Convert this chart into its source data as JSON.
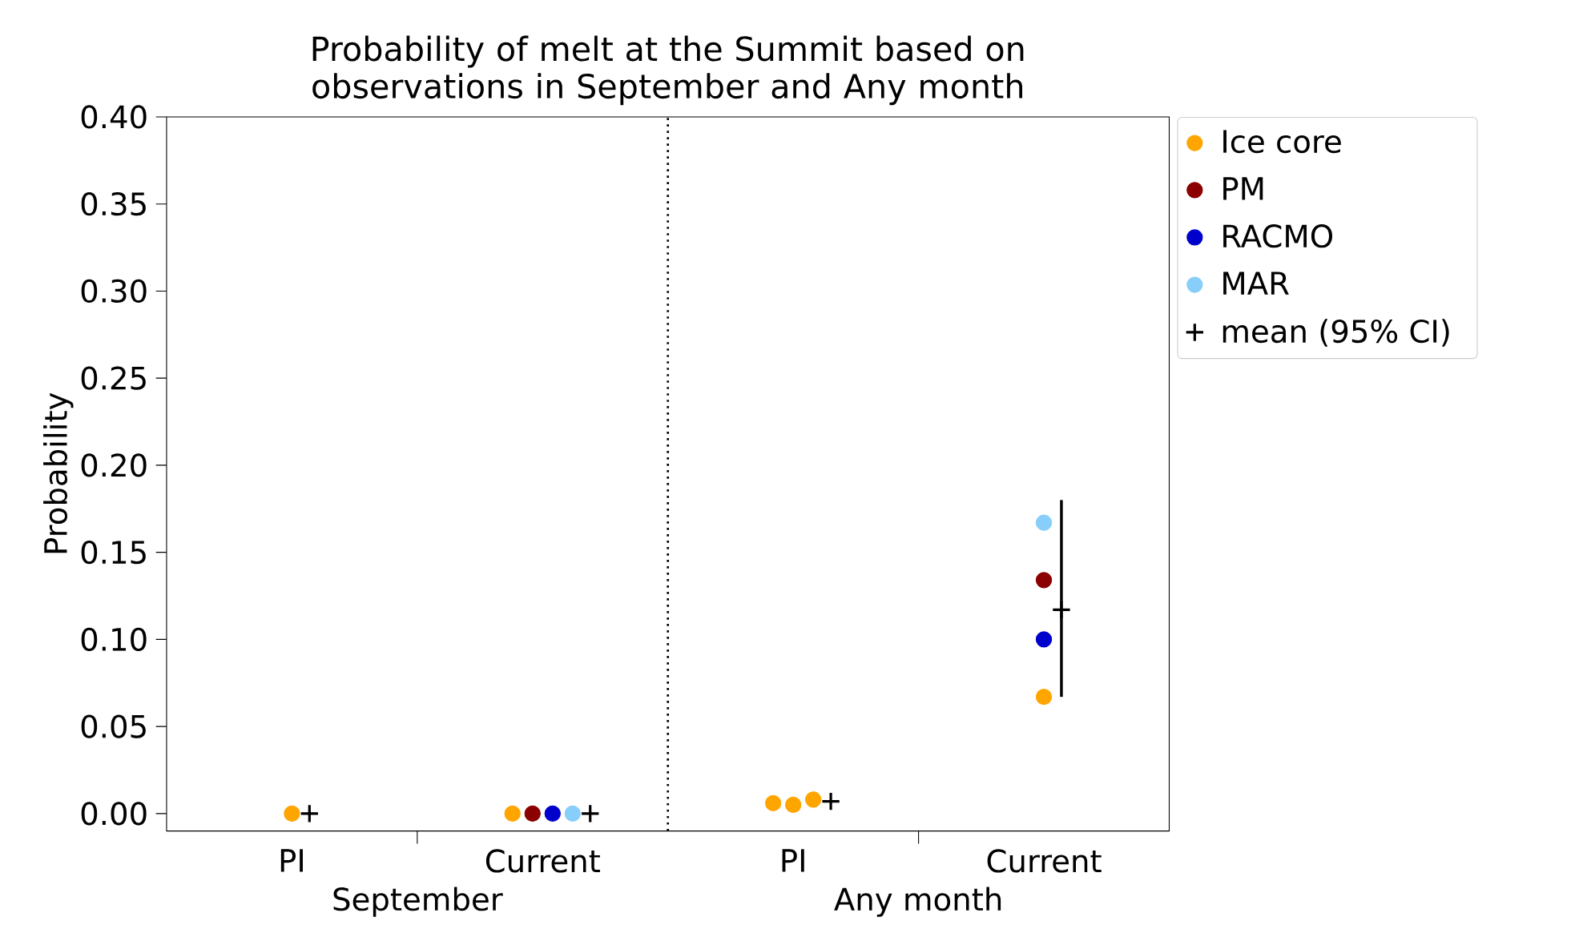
{
  "chart_data": {
    "type": "scatter",
    "title": "Probability of melt at the Summit based on observations in September and Any month",
    "ylabel": "Probability",
    "categories": [
      "PI",
      "Current",
      "PI",
      "Current"
    ],
    "annotations": [
      "September",
      "Any month"
    ],
    "ylim": [
      -0.01,
      0.4
    ],
    "yticks": [
      {
        "value": 0,
        "label": "0.00"
      },
      {
        "value": 0.05,
        "label": "0.05"
      },
      {
        "value": 0.1,
        "label": "0.10"
      },
      {
        "value": 0.15,
        "label": "0.15"
      },
      {
        "value": 0.2,
        "label": "0.20"
      },
      {
        "value": 0.25,
        "label": "0.25"
      },
      {
        "value": 0.3,
        "label": "0.30"
      },
      {
        "value": 0.35,
        "label": "0.35"
      },
      {
        "value": 0.4,
        "label": "0.40"
      }
    ],
    "legend": "top right",
    "series": [
      {
        "name": "Ice core",
        "color": "#ffa500",
        "marker": "circle",
        "values": [
          0,
          0,
          0.006,
          0.067
        ]
      },
      {
        "name": "PM",
        "color": "#8b0000",
        "marker": "circle",
        "values": [
          null,
          0,
          null,
          0.134
        ]
      },
      {
        "name": "RACMO",
        "color": "#0000cd",
        "marker": "circle",
        "values": [
          null,
          0,
          null,
          0.1
        ]
      },
      {
        "name": "MAR",
        "color": "#87cefa",
        "marker": "circle",
        "values": [
          null,
          0,
          null,
          0.167
        ]
      },
      {
        "name": "mean (95% CI)",
        "color": "#000000",
        "marker": "cross",
        "values": [
          0,
          0,
          0.007,
          0.117
        ],
        "errors": [
          null,
          null,
          null,
          [
            0.067,
            0.18
          ]
        ]
      },
      {
        "color": "#ffa500",
        "marker": "circle",
        "values": [
          null,
          null,
          0.005,
          null
        ]
      },
      {
        "color": "#ffa500",
        "marker": "circle",
        "values": [
          null,
          null,
          0.008,
          null
        ]
      }
    ]
  }
}
